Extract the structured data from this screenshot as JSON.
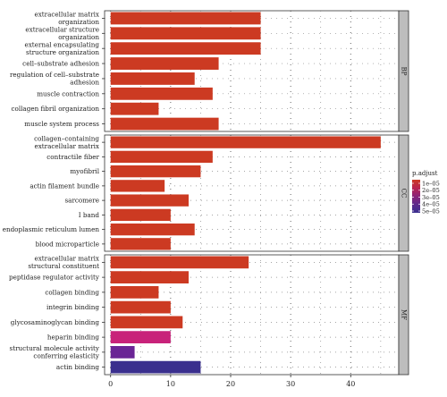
{
  "chart_data": {
    "type": "bar",
    "orientation": "horizontal",
    "facets": [
      {
        "name": "BP",
        "categories": [
          "extracellular matrix\norganization",
          "extracellular structure\norganization",
          "external encapsulating\nstructure organization",
          "cell–substrate adhesion",
          "regulation of cell–substrate\nadhesion",
          "muscle contraction",
          "collagen fibril organization",
          "muscle system process"
        ],
        "values": [
          25,
          25,
          25,
          18,
          14,
          17,
          8,
          18
        ],
        "colors": [
          "#cc3a22",
          "#cc3a22",
          "#cc3a22",
          "#cc3a22",
          "#cc3a22",
          "#cc3a22",
          "#cc3a22",
          "#cc3a22"
        ]
      },
      {
        "name": "CC",
        "categories": [
          "collagen–containing\nextracellular matrix",
          "contractile fiber",
          "myofibril",
          "actin filament bundle",
          "sarcomere",
          "I band",
          "endoplasmic reticulum lumen",
          "blood microparticle"
        ],
        "values": [
          45,
          17,
          15,
          9,
          13,
          10,
          14,
          10
        ],
        "colors": [
          "#cc3a22",
          "#cc3a22",
          "#cc3a22",
          "#cc3a22",
          "#cc3a22",
          "#cc3a22",
          "#cc3a22",
          "#cc3a22"
        ]
      },
      {
        "name": "MF",
        "categories": [
          "extracellular matrix\nstructural constituent",
          "peptidase regulator activity",
          "collagen binding",
          "integrin binding",
          "glycosaminoglycan binding",
          "heparin binding",
          "structural molecule activity\nconferring elasticity",
          "actin binding"
        ],
        "values": [
          23,
          13,
          8,
          10,
          12,
          10,
          4,
          15
        ],
        "colors": [
          "#cc3a22",
          "#cc3a22",
          "#cc3a22",
          "#cc3a22",
          "#cc3a22",
          "#c8227a",
          "#6a2595",
          "#3a2f8e"
        ]
      }
    ],
    "xlim": [
      -1,
      48
    ],
    "xticks": [
      0,
      10,
      20,
      30,
      40
    ],
    "legend": {
      "title": "p.adjust",
      "labels": [
        "1e–05",
        "2e–05",
        "3e–05",
        "4e–05",
        "5e–05"
      ],
      "gradient": [
        "#cc3a22",
        "#b82450",
        "#8a2478",
        "#5c2a8c",
        "#3a2f8e"
      ],
      "position": "right"
    },
    "grid": true
  }
}
